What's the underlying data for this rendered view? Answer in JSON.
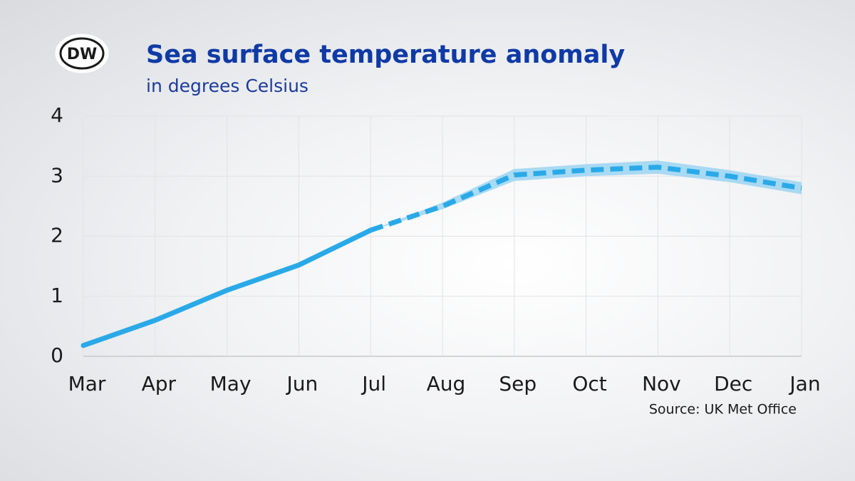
{
  "logo": "DW",
  "chart_data": {
    "type": "line",
    "title": "Sea surface temperature anomaly",
    "subtitle": "in degrees Celsius",
    "source": "Source: UK Met Office",
    "categories": [
      "Mar",
      "Apr",
      "May",
      "Jun",
      "Jul",
      "Aug",
      "Sep",
      "Oct",
      "Nov",
      "Dec",
      "Jan"
    ],
    "series": [
      {
        "color": "#2aa9e8",
        "dash": false,
        "values": [
          0.18,
          0.6,
          1.1,
          1.52,
          2.1,
          null,
          null,
          null,
          null,
          null,
          null
        ]
      },
      {
        "color": "#2aa9e8",
        "dash": true,
        "band_color": "#8fd0f2",
        "values": [
          null,
          null,
          null,
          null,
          2.1,
          2.5,
          3.02,
          3.1,
          3.15,
          3.0,
          2.8
        ],
        "lower": [
          null,
          null,
          null,
          null,
          2.1,
          2.45,
          2.92,
          3.0,
          3.04,
          2.9,
          2.7
        ],
        "upper": [
          null,
          null,
          null,
          null,
          2.1,
          2.56,
          3.12,
          3.2,
          3.26,
          3.1,
          2.9
        ]
      }
    ],
    "ylim": [
      0,
      4
    ],
    "yticks": [
      0,
      1,
      2,
      3,
      4
    ],
    "grid": true
  }
}
